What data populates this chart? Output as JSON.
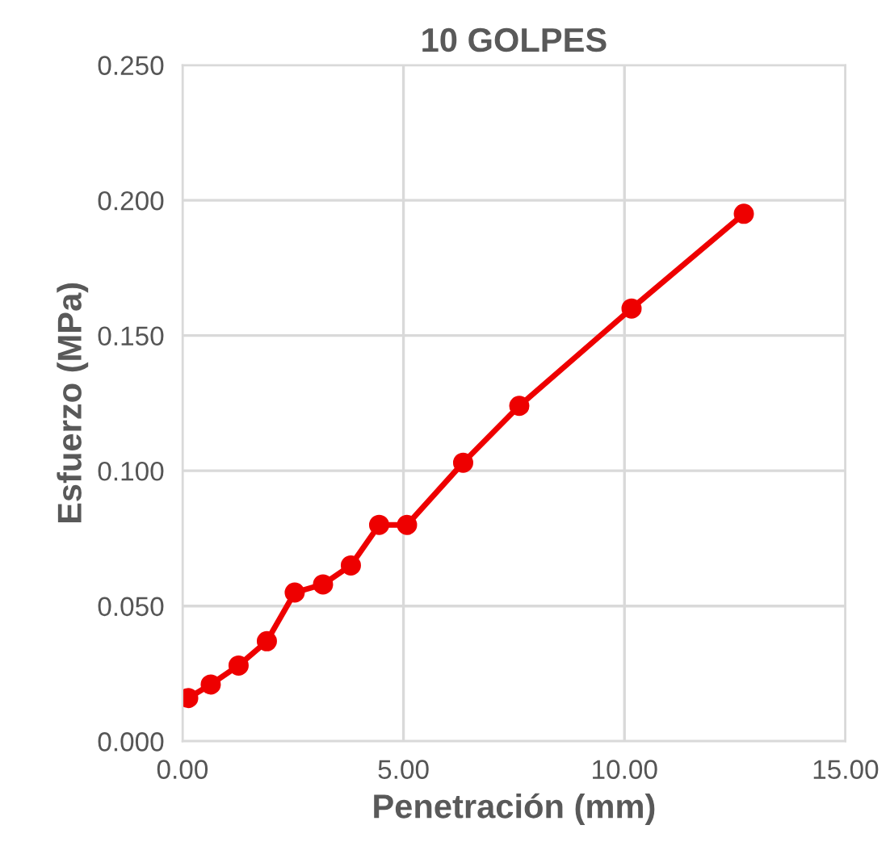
{
  "chart_data": {
    "type": "line",
    "title": "10 GOLPES",
    "xlabel": "Penetración (mm)",
    "ylabel": "Esfuerzo (MPa)",
    "series": [
      {
        "color": "#ee0000",
        "x": [
          0.13,
          0.64,
          1.27,
          1.91,
          2.54,
          3.18,
          3.81,
          4.45,
          5.08,
          6.35,
          7.62,
          10.16,
          12.7
        ],
        "values": [
          0.016,
          0.021,
          0.028,
          0.037,
          0.055,
          0.058,
          0.065,
          0.08,
          0.08,
          0.103,
          0.124,
          0.16,
          0.195
        ]
      }
    ],
    "xlim": [
      0,
      15
    ],
    "xticks": [
      {
        "value": 0,
        "label": "0.00"
      },
      {
        "value": 5,
        "label": "5.00"
      },
      {
        "value": 10,
        "label": "10.00"
      },
      {
        "value": 15,
        "label": "15.00"
      }
    ],
    "ylim": [
      0,
      0.25
    ],
    "yticks": [
      {
        "value": 0,
        "label": "0.000"
      },
      {
        "value": 0.05,
        "label": "0.050"
      },
      {
        "value": 0.1,
        "label": "0.100"
      },
      {
        "value": 0.15,
        "label": "0.150"
      },
      {
        "value": 0.2,
        "label": "0.200"
      },
      {
        "value": 0.25,
        "label": "0.250"
      }
    ],
    "grid": true,
    "marker": "circle",
    "line_style": "solid"
  }
}
